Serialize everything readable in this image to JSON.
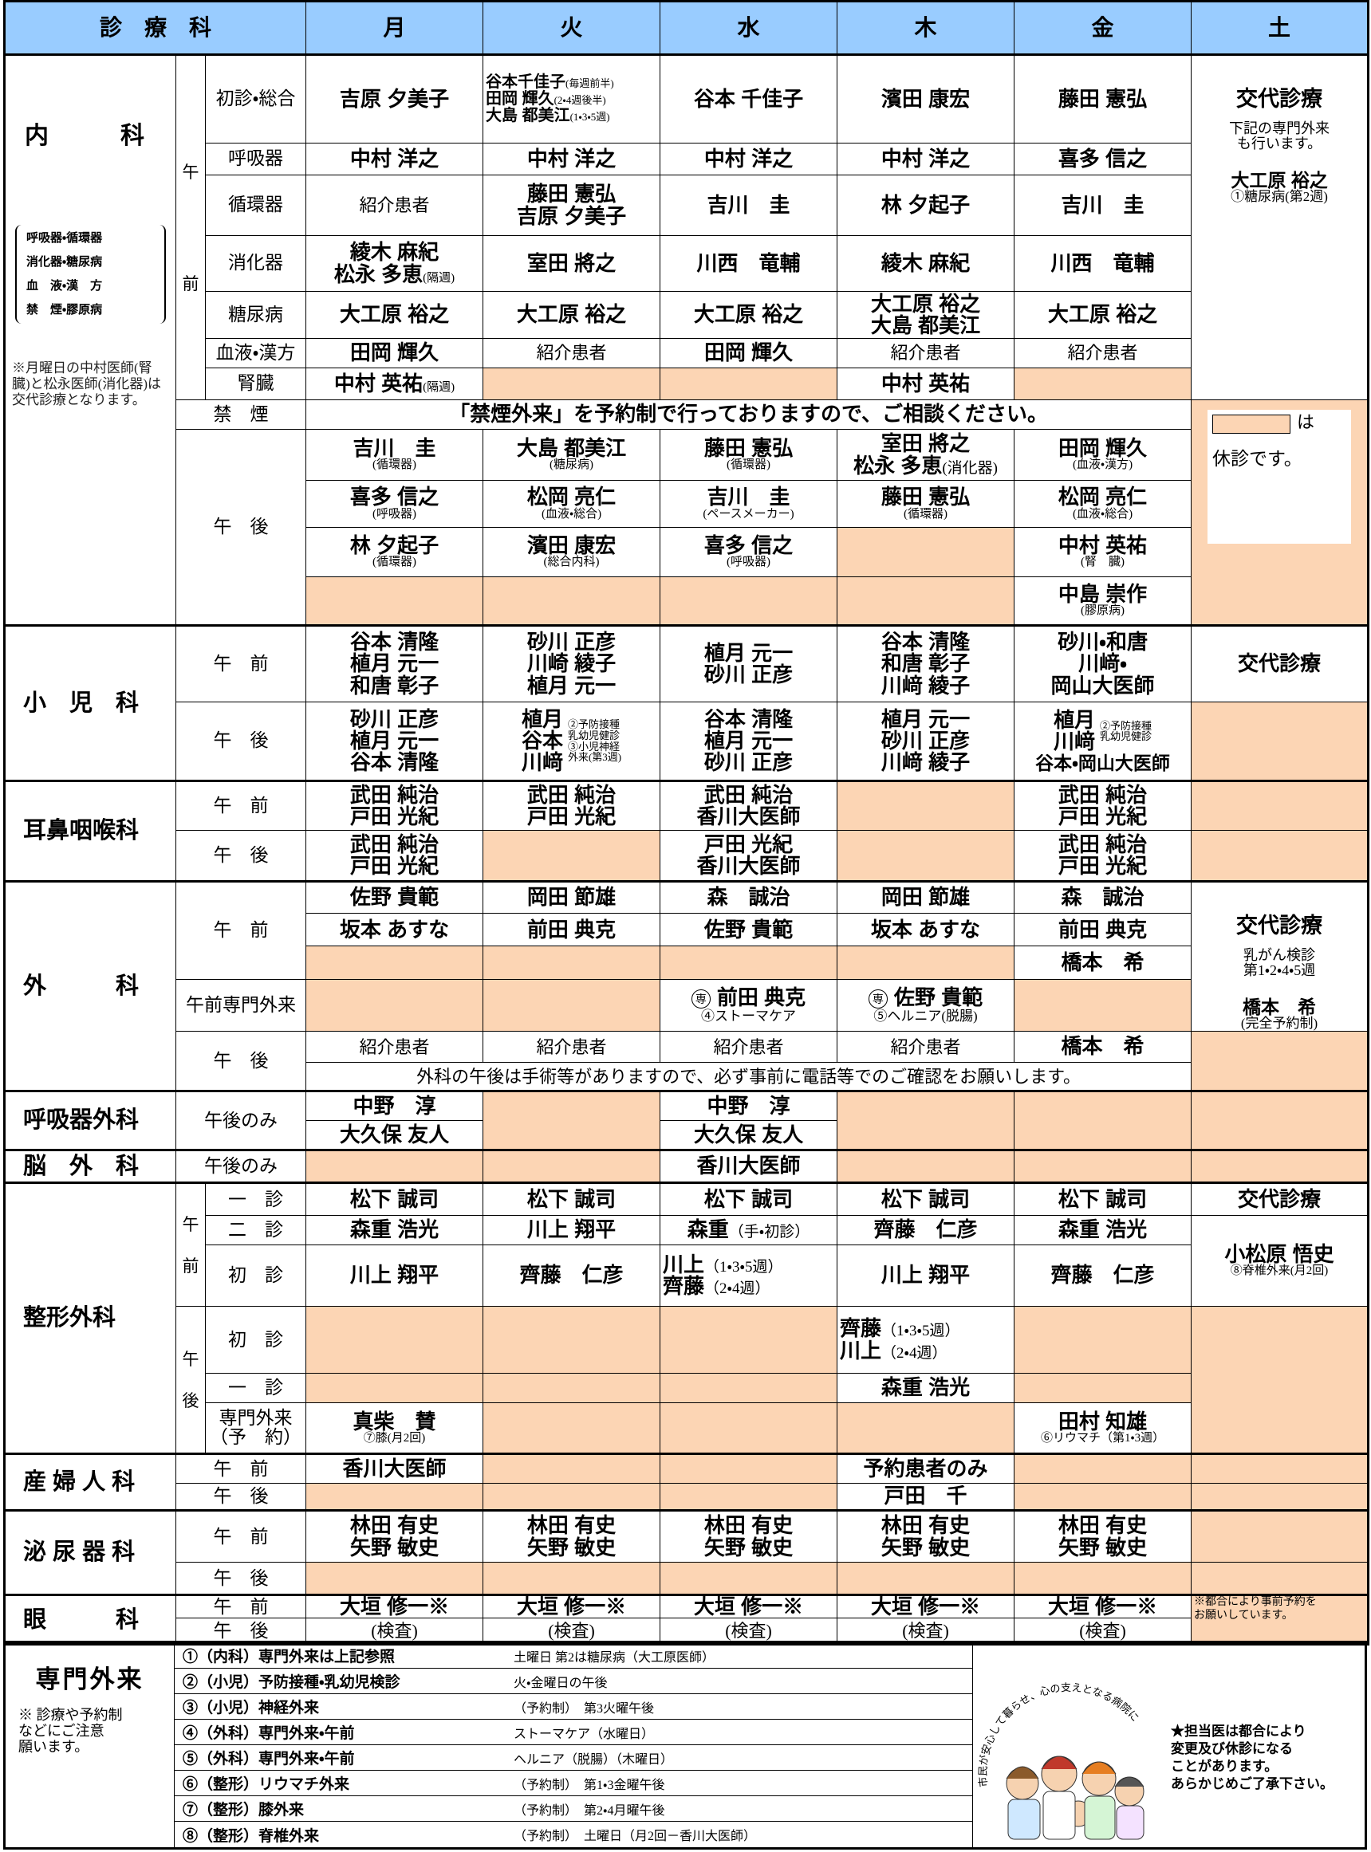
{
  "header": {
    "dept": "診　療　科",
    "days": [
      "月",
      "火",
      "水",
      "木",
      "金",
      "土"
    ]
  },
  "internal": {
    "dept": {
      "name": "内　　　科",
      "specialties": "呼吸器・循環器\n消化器・糖尿病\n血　液・漢　方\n禁　煙・膠原病",
      "note": "※月曜日の中村医師(腎臓)と松永医師(消化器)は交代診療となります。"
    },
    "am": "午前",
    "rows": [
      {
        "label": "初診・総合",
        "mon": "吉原 夕美子",
        "tue": [
          {
            "name": "谷本千佳子",
            "note": "(毎週前半)"
          },
          {
            "name": "田岡 輝久",
            "note": "(2・4週後半)"
          },
          {
            "name": "大島 都美江",
            "note": "(1・3・5週)"
          }
        ],
        "wed": "谷本 千佳子",
        "thu": "濱田 康宏",
        "fri": "藤田 憲弘"
      },
      {
        "label": "呼吸器",
        "mon": "中村 洋之",
        "tue": "中村 洋之",
        "wed": "中村 洋之",
        "thu": "中村 洋之",
        "fri": "喜多 信之"
      },
      {
        "label": "循環器",
        "mon": "紹介患者",
        "tue": "藤田 憲弘\n吉原 夕美子",
        "wed": "吉川　圭",
        "thu": "林 夕起子",
        "fri": "吉川　圭"
      },
      {
        "label": "消化器",
        "mon": {
          "name": "綾木 麻紀\n松永 多恵",
          "note": "(隔週)"
        },
        "tue": "室田 將之",
        "wed": "川西　竜輔",
        "thu": "綾木 麻紀",
        "fri": "川西　竜輔"
      },
      {
        "label": "糖尿病",
        "mon": "大工原 裕之",
        "tue": "大工原 裕之",
        "wed": "大工原 裕之",
        "thu": "大工原 裕之\n大島 都美江",
        "fri": "大工原 裕之"
      },
      {
        "label": "血液・漢方",
        "mon": "田岡 輝久",
        "tue": "紹介患者",
        "wed": "田岡 輝久",
        "thu": "紹介患者",
        "fri": "紹介患者"
      },
      {
        "label": "腎臓",
        "mon": {
          "name": "中村 英祐",
          "note": "(隔週)"
        },
        "thu": "中村 英祐"
      }
    ],
    "sat": {
      "title": "交代診療",
      "text": "下記の専門外来\nも行います。",
      "doctor": "大工原 裕之",
      "doctor_note": "①糖尿病(第2週)"
    },
    "smoking": {
      "label": "禁　煙",
      "text": "「禁煙外来」を予約制で行っておりますので、ご相談ください。"
    },
    "legend": {
      "a": "は",
      "b": "休診です。"
    },
    "pm": "午　後",
    "pm_rows": [
      {
        "mon": {
          "name": "吉川　圭",
          "note": "(循環器)"
        },
        "tue": {
          "name": "大島 都美江",
          "note": "(糖尿病)"
        },
        "wed": {
          "name": "藤田 憲弘",
          "note": "(循環器)"
        },
        "thu": {
          "name": "室田 將之\n松永 多恵",
          "note": "(消化器)"
        },
        "fri": {
          "name": "田岡 輝久",
          "note": "(血液・漢方)"
        }
      },
      {
        "mon": {
          "name": "喜多 信之",
          "note": "(呼吸器)"
        },
        "tue": {
          "name": "松岡 亮仁",
          "note": "(血液・総合)"
        },
        "wed": {
          "name": "吉川　圭",
          "note": "(ペースメーカー)"
        },
        "thu": {
          "name": "藤田 憲弘",
          "note": "(循環器)"
        },
        "fri": {
          "name": "松岡 亮仁",
          "note": "(血液・総合)"
        }
      },
      {
        "mon": {
          "name": "林 夕起子",
          "note": "(循環器)"
        },
        "tue": {
          "name": "濱田 康宏",
          "note": "(総合内科)"
        },
        "wed": {
          "name": "喜多 信之",
          "note": "(呼吸器)"
        },
        "fri": {
          "name": "中村 英祐",
          "note": "(腎　臓)"
        }
      },
      {
        "fri": {
          "name": "中島 崇作",
          "note": "(膠原病)"
        }
      }
    ]
  },
  "pediatrics": {
    "name": "小　児　科",
    "am_label": "午　前",
    "pm_label": "午　後",
    "am": {
      "mon": "谷本 清隆\n植月 元一\n和唐 彰子",
      "tue": "砂川 正彦\n川崎 綾子\n植月 元一",
      "wed": "植月 元一\n砂川 正彦",
      "thu": "谷本 清隆\n和唐 彰子\n川﨑 綾子",
      "fri": "砂川・和唐\n川﨑・\n岡山大医師",
      "sat": "交代診療"
    },
    "pm": {
      "mon": "砂川 正彦\n植月 元一\n谷本 清隆",
      "tue": {
        "name": "植月\n谷本\n川﨑",
        "note": "②予防接種\n乳幼児健診\n③小児神経\n外来(第3週)"
      },
      "wed": "谷本 清隆\n植月 元一\n砂川 正彦",
      "thu": "植月 元一\n砂川 正彦\n川﨑 綾子",
      "fri": {
        "name": "植月\n川﨑",
        "note": "②予防接種\n乳幼児健診",
        "extra": "谷本・岡山大医師"
      }
    }
  },
  "ent": {
    "name": "耳鼻咽喉科",
    "am_label": "午　前",
    "pm_label": "午　後",
    "am": {
      "mon": "武田 純治\n戸田 光紀",
      "tue": "武田 純治\n戸田 光紀",
      "wed": "武田 純治\n香川大医師",
      "fri": "武田 純治\n戸田 光紀"
    },
    "pm": {
      "mon": "武田 純治\n戸田 光紀",
      "wed": "戸田 光紀\n香川大医師",
      "fri": "武田 純治\n戸田 光紀"
    }
  },
  "surgery": {
    "name": "外　　　科",
    "am_label": "午　前",
    "special_label": "午前専門外来",
    "pm_label": "午　後",
    "am": [
      {
        "mon": "佐野 貴範",
        "tue": "岡田 節雄",
        "wed": "森　誠治",
        "thu": "岡田 節雄",
        "fri": "森　誠治"
      },
      {
        "mon": "坂本 あすな",
        "tue": "前田 典克",
        "wed": "佐野 貴範",
        "thu": "坂本 あすな",
        "fri": "前田 典克"
      },
      {
        "fri": "橋本　希"
      }
    ],
    "sat": {
      "title": "交代診療",
      "text": "乳がん検診\n第1・2・4・5週",
      "doctor": "橋本　希",
      "doctor_note": "(完全予約制)"
    },
    "special": {
      "wed": {
        "mark": "専",
        "name": "前田 典克",
        "note": "④ストーマケア"
      },
      "thu": {
        "mark": "専",
        "name": "佐野 貴範",
        "note": "⑤ヘルニア(脱腸)"
      }
    },
    "pm": {
      "mon": "紹介患者",
      "tue": "紹介患者",
      "wed": "紹介患者",
      "thu": "紹介患者",
      "fri": "橋本　希"
    },
    "pm_note": "外科の午後は手術等がありますので、必ず事前に電話等でのご確認をお願いします。"
  },
  "resp_surgery": {
    "name": "呼吸器外科",
    "label": "午後のみ",
    "rows": [
      {
        "mon": "中野　淳",
        "wed": "中野　淳"
      },
      {
        "mon": "大久保 友人",
        "wed": "大久保 友人"
      }
    ]
  },
  "neurosurgery": {
    "name": "脳　外　科",
    "label": "午後のみ",
    "days": {
      "wed": "香川大医師"
    }
  },
  "orthopedics": {
    "name": "整形外科",
    "am_label": "午前",
    "pm_label": "午後",
    "rows": [
      {
        "label": "一　診",
        "mon": "松下 誠司",
        "tue": "松下 誠司",
        "wed": "松下 誠司",
        "thu": "松下 誠司",
        "fri": "松下 誠司",
        "sat": "交代診療"
      },
      {
        "label": "二　診",
        "mon": "森重 浩光",
        "tue": "川上 翔平",
        "wed": {
          "name": "森重",
          "note": "（手・初診）"
        },
        "thu": "齊藤　仁彦",
        "fri": "森重 浩光"
      },
      {
        "label": "初　診",
        "mon": "川上 翔平",
        "tue": "齊藤　仁彦",
        "wed": [
          {
            "name": "川上",
            "note": "（1・3・5週）"
          },
          {
            "name": "齊藤",
            "note": "（2・4週）"
          }
        ],
        "thu": "川上 翔平",
        "fri": "齊藤　仁彦"
      }
    ],
    "sat2": {
      "name": "小松原 悟史",
      "note": "⑧脊椎外来(月2回)"
    },
    "pm_rows": [
      {
        "label": "初　診",
        "thu": [
          {
            "name": "齊藤",
            "note": "（1・3・5週）"
          },
          {
            "name": "川上",
            "note": "（2・4週）"
          }
        ]
      },
      {
        "label": "一　診",
        "thu": "森重 浩光"
      },
      {
        "label": {
          "name": "専門外来",
          "note": "（予　約）"
        },
        "mon": {
          "name": "真柴　賛",
          "note": "⑦膝(月2回)"
        },
        "fri": {
          "name": "田村 知雄",
          "note": "⑥リウマチ（第1・3週）"
        }
      }
    ]
  },
  "obgyn": {
    "name": "産 婦 人 科",
    "am_label": "午　前",
    "pm_label": "午　後",
    "am": {
      "mon": "香川大医師",
      "thu": "予約患者のみ"
    },
    "pm": {
      "thu": "戸田　千"
    }
  },
  "urology": {
    "name": "泌 尿 器 科",
    "am_label": "午　前",
    "pm_label": "午　後",
    "am": {
      "mon": "林田 有史\n矢野 敏史",
      "tue": "林田 有史\n矢野 敏史",
      "wed": "林田 有史\n矢野 敏史",
      "thu": "林田 有史\n矢野 敏史",
      "fri": "林田 有史\n矢野 敏史"
    }
  },
  "ophthalmology": {
    "name": "眼　　　科",
    "am_label": "午　前",
    "pm_label": "午　後",
    "am": {
      "mon": "大垣 修一※",
      "tue": "大垣 修一※",
      "wed": "大垣 修一※",
      "thu": "大垣 修一※",
      "fri": "大垣 修一※"
    },
    "pm": {
      "mon": "(検査)",
      "tue": "(検査)",
      "wed": "(検査)",
      "thu": "(検査)",
      "fri": "(検査)"
    },
    "sat_note": "※都合により事前予約を\nお願いしています。"
  },
  "special": {
    "title": "専門外来",
    "note": "※ 診療や予約制\nなどにご注意\n願います。",
    "items": [
      {
        "label": "①（内科）専門外来は上記参照",
        "detail": "土曜日 第2は糖尿病（大工原医師）"
      },
      {
        "label": "②（小児）予防接種・乳幼児検診",
        "detail": "火・金曜日の午後"
      },
      {
        "label": "③（小児）神経外来",
        "detail": "（予約制）　第3火曜午後"
      },
      {
        "label": "④（外科）専門外来・午前",
        "detail": "ストーマケア（水曜日）"
      },
      {
        "label": "⑤（外科）専門外来・午前",
        "detail": "ヘルニア（脱腸）（木曜日）"
      },
      {
        "label": "⑥（整形）リウマチ外来",
        "detail": "（予約制）　第1・3金曜午後"
      },
      {
        "label": "⑦（整形）膝外来",
        "detail": "（予約制）　第2・4月曜午後"
      },
      {
        "label": "⑧（整形）脊椎外来",
        "detail": "（予約制）　土曜日（月2回－香川大医師）"
      }
    ],
    "slogan": "市民が安心して暮らせ、心の支えとなる病院に",
    "notice": "★担当医は都合により\n変更及び休診になる\nことがあります。\nあらかじめご了承下さい。"
  }
}
